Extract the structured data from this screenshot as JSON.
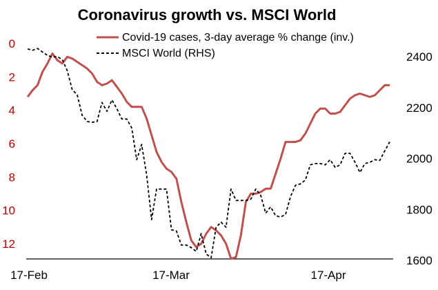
{
  "chart_data": {
    "type": "line",
    "title": "Coronavirus growth vs. MSCI World",
    "x_tick_labels": [
      "17-Feb",
      "17-Mar",
      "17-Apr"
    ],
    "y_left": {
      "min": 0,
      "max": 13,
      "inverted": true,
      "ticks": [
        0,
        2,
        4,
        6,
        8,
        10,
        12
      ],
      "color": "#c0504d"
    },
    "y_right": {
      "min": 1600,
      "max": 2450,
      "ticks": [
        1600,
        1800,
        2000,
        2200,
        2400
      ]
    },
    "legend": {
      "placement": "top-right"
    },
    "series": [
      {
        "name": "Covid-19 cases, 3-day average % change (inv.)",
        "axis": "left",
        "color": "#c0504d",
        "style": "solid",
        "values": [
          3.2,
          2.8,
          2.5,
          1.7,
          1.2,
          0.6,
          1.0,
          1.2,
          0.8,
          0.9,
          1.1,
          1.3,
          1.5,
          1.8,
          2.3,
          2.5,
          2.4,
          2.2,
          2.6,
          3.0,
          3.5,
          3.8,
          3.8,
          3.8,
          4.5,
          5.5,
          6.5,
          7.1,
          7.5,
          7.7,
          8.1,
          9.5,
          10.7,
          11.8,
          12.2,
          12.0,
          11.4,
          11.0,
          11.2,
          11.5,
          12.0,
          12.9,
          12.8,
          11.5,
          9.5,
          9.0,
          9.0,
          8.9,
          8.7,
          8.7,
          7.8,
          6.9,
          5.9,
          5.9,
          5.9,
          5.8,
          5.4,
          4.8,
          4.2,
          3.9,
          3.9,
          4.2,
          4.2,
          4.1,
          3.7,
          3.3,
          3.1,
          3.0,
          3.1,
          3.2,
          3.1,
          2.8,
          2.5,
          2.5
        ]
      },
      {
        "name": "MSCI World (RHS)",
        "axis": "right",
        "color": "#000000",
        "style": "dashed",
        "values": [
          2430,
          2425,
          2432,
          2418,
          2405,
          2398,
          2400,
          2388,
          2345,
          2270,
          2250,
          2170,
          2145,
          2142,
          2145,
          2220,
          2185,
          2230,
          2195,
          2155,
          2155,
          2120,
          1995,
          2055,
          1935,
          1760,
          1880,
          1880,
          1880,
          1720,
          1715,
          1660,
          1660,
          1650,
          1635,
          1705,
          1625,
          1610,
          1730,
          1750,
          1730,
          1880,
          1835,
          1835,
          1835,
          1840,
          1880,
          1855,
          1785,
          1810,
          1775,
          1770,
          1780,
          1850,
          1895,
          1900,
          1915,
          1975,
          1980,
          1980,
          1975,
          1995,
          1965,
          1975,
          2020,
          2020,
          1985,
          1945,
          1980,
          1985,
          1995,
          1992,
          2030,
          2065
        ]
      }
    ]
  }
}
